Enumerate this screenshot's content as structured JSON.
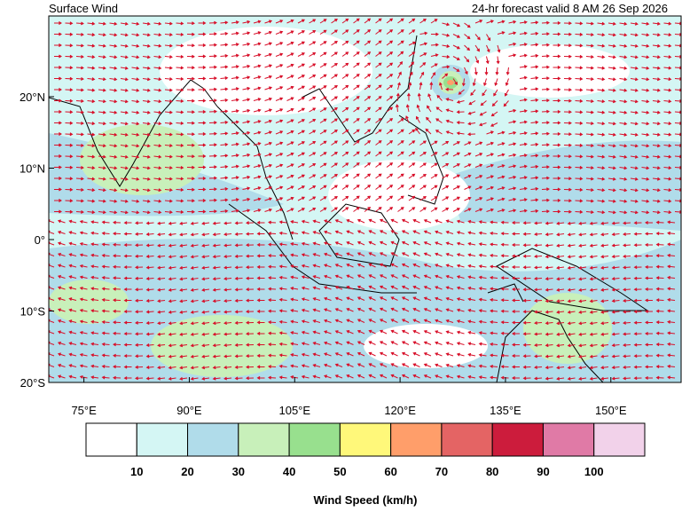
{
  "map": {
    "title": "Surface Wind",
    "subtitle": "24-hr forecast valid 8 AM 26 Sep 2026",
    "lon_lim": [
      70,
      160
    ],
    "lat_lim": [
      -20,
      31.3
    ],
    "lat_ticks": [
      {
        "value": 20,
        "label": "20°N"
      },
      {
        "value": 10,
        "label": "10°N"
      },
      {
        "value": 0,
        "label": "0°"
      },
      {
        "value": -10,
        "label": "10°S"
      },
      {
        "value": -20,
        "label": "20°S"
      }
    ],
    "lon_ticks": [
      {
        "value": 75,
        "label": "75°E"
      },
      {
        "value": 90,
        "label": "90°E"
      },
      {
        "value": 105,
        "label": "105°E"
      },
      {
        "value": 120,
        "label": "120°E"
      },
      {
        "value": 135,
        "label": "135°E"
      },
      {
        "value": 150,
        "label": "150°E"
      }
    ],
    "colorbar": {
      "label": "Wind Speed (km/h)",
      "colors": [
        "#ffffff",
        "#d4f6f4",
        "#b0dcea",
        "#c8f0ba",
        "#98e08e",
        "#fff87a",
        "#ff9e6a",
        "#e46464",
        "#cc1c3c",
        "#e07aa6",
        "#f2d2ea"
      ],
      "ticks": [
        10,
        20,
        30,
        40,
        50,
        60,
        70,
        80,
        90,
        100
      ]
    }
  }
}
